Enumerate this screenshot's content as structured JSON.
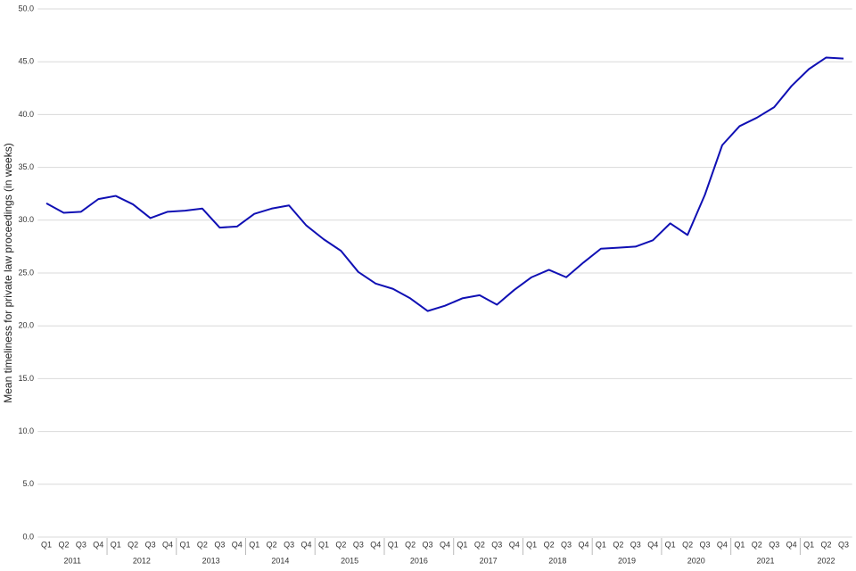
{
  "chart_data": {
    "type": "line",
    "y_label": "Mean timeliness for private law proceedings (in weeks)",
    "categories": [
      "Q1",
      "Q2",
      "Q3",
      "Q4",
      "Q1",
      "Q2",
      "Q3",
      "Q4",
      "Q1",
      "Q2",
      "Q3",
      "Q4",
      "Q1",
      "Q2",
      "Q3",
      "Q4",
      "Q1",
      "Q2",
      "Q3",
      "Q4",
      "Q1",
      "Q2",
      "Q3",
      "Q4",
      "Q1",
      "Q2",
      "Q3",
      "Q4",
      "Q1",
      "Q2",
      "Q3",
      "Q4",
      "Q1",
      "Q2",
      "Q3",
      "Q4",
      "Q1",
      "Q2",
      "Q3",
      "Q4",
      "Q1",
      "Q2",
      "Q3",
      "Q4",
      "Q1",
      "Q2",
      "Q3"
    ],
    "years": [
      "2011",
      "2012",
      "2013",
      "2014",
      "2015",
      "2016",
      "2017",
      "2018",
      "2019",
      "2020",
      "2021",
      "2022"
    ],
    "series": [
      {
        "name": "Mean timeliness",
        "color": "#1010b4",
        "values": [
          31.6,
          30.7,
          30.8,
          32.0,
          32.3,
          31.5,
          30.2,
          30.8,
          30.9,
          31.1,
          29.3,
          29.4,
          30.6,
          31.1,
          31.4,
          29.5,
          28.2,
          27.1,
          25.1,
          24.0,
          23.5,
          22.6,
          21.4,
          21.9,
          22.6,
          22.9,
          22.0,
          23.4,
          24.6,
          25.3,
          24.6,
          26.0,
          27.3,
          27.4,
          27.5,
          28.1,
          29.7,
          28.6,
          32.4,
          37.1,
          38.9,
          39.7,
          40.7,
          42.7,
          44.3,
          45.4,
          45.3
        ]
      }
    ],
    "ylim": [
      0,
      50
    ],
    "yticks": [
      {
        "value": 0,
        "label": "0.0"
      },
      {
        "value": 5,
        "label": "5.0"
      },
      {
        "value": 10,
        "label": "10.0"
      },
      {
        "value": 15,
        "label": "15.0"
      },
      {
        "value": 20,
        "label": "20.0"
      },
      {
        "value": 25,
        "label": "25.0"
      },
      {
        "value": 30,
        "label": "30.0"
      },
      {
        "value": 35,
        "label": "35.0"
      },
      {
        "value": 40,
        "label": "40.0"
      },
      {
        "value": 45,
        "label": "45.0"
      },
      {
        "value": 50,
        "label": "50.0"
      }
    ],
    "grid": true
  }
}
